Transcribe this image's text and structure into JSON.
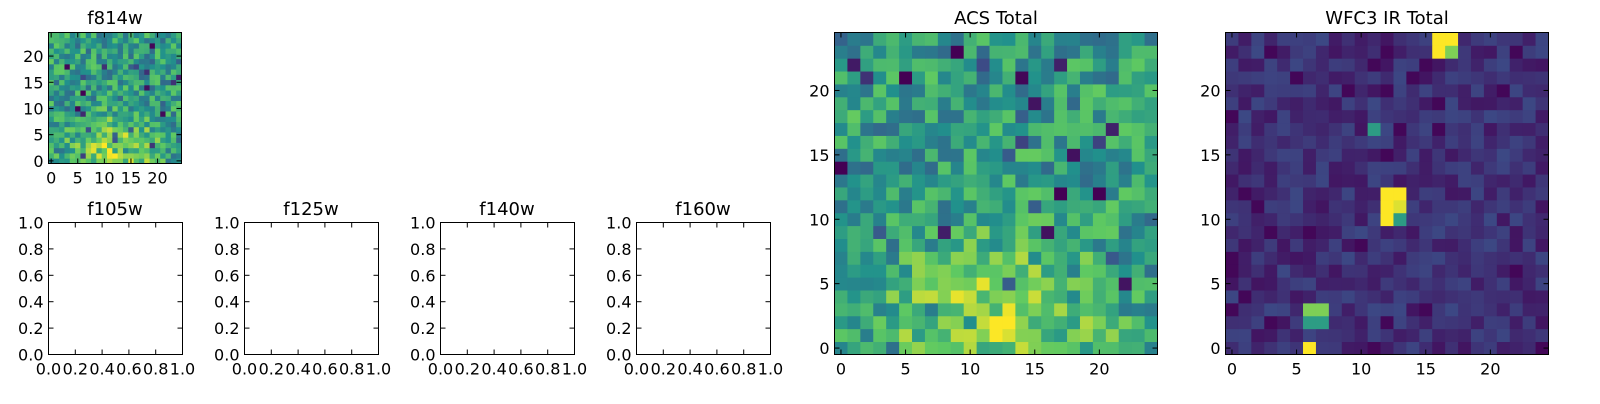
{
  "colors": {
    "viridis": [
      "#440154",
      "#3b528b",
      "#21918c",
      "#5ec962",
      "#fde725"
    ]
  },
  "panels": [
    {
      "title": "f814w",
      "kind": "image",
      "xticks": [
        "0",
        "5",
        "10",
        "15",
        "20"
      ],
      "yticks": [
        "0",
        "5",
        "10",
        "15",
        "20"
      ]
    },
    {
      "title": "f105w",
      "kind": "empty",
      "xticks": [
        "0.0",
        "0.2",
        "0.4",
        "0.6",
        "0.8",
        "1.0"
      ],
      "yticks": [
        "0.0",
        "0.2",
        "0.4",
        "0.6",
        "0.8",
        "1.0"
      ]
    },
    {
      "title": "f125w",
      "kind": "empty",
      "xticks": [
        "0.0",
        "0.2",
        "0.4",
        "0.6",
        "0.8",
        "1.0"
      ],
      "yticks": [
        "0.0",
        "0.2",
        "0.4",
        "0.6",
        "0.8",
        "1.0"
      ]
    },
    {
      "title": "f140w",
      "kind": "empty",
      "xticks": [
        "0.0",
        "0.2",
        "0.4",
        "0.6",
        "0.8",
        "1.0"
      ],
      "yticks": [
        "0.0",
        "0.2",
        "0.4",
        "0.6",
        "0.8",
        "1.0"
      ]
    },
    {
      "title": "f160w",
      "kind": "empty",
      "xticks": [
        "0.0",
        "0.2",
        "0.4",
        "0.6",
        "0.8",
        "1.0"
      ],
      "yticks": [
        "0.0",
        "0.2",
        "0.4",
        "0.6",
        "0.8",
        "1.0"
      ]
    },
    {
      "title": "ACS Total",
      "kind": "image",
      "xticks": [
        "0",
        "5",
        "10",
        "15",
        "20"
      ],
      "yticks": [
        "0",
        "5",
        "10",
        "15",
        "20"
      ]
    },
    {
      "title": "WFC3 IR Total",
      "kind": "image",
      "xticks": [
        "0",
        "5",
        "10",
        "15",
        "20"
      ],
      "yticks": [
        "0",
        "5",
        "10",
        "15",
        "20"
      ]
    }
  ],
  "chart_data": [
    {
      "type": "heatmap",
      "title": "f814w",
      "colormap": "viridis",
      "grid_size": [
        25,
        25
      ],
      "xlim": [
        -0.5,
        24.5
      ],
      "ylim": [
        -0.5,
        24.5
      ],
      "features": "noisy field, brighter (yellow) region near x 8-15, y 0-5"
    },
    {
      "type": "scatter",
      "title": "f105w",
      "xlim": [
        0,
        1
      ],
      "ylim": [
        0,
        1
      ],
      "values": []
    },
    {
      "type": "scatter",
      "title": "f125w",
      "xlim": [
        0,
        1
      ],
      "ylim": [
        0,
        1
      ],
      "values": []
    },
    {
      "type": "scatter",
      "title": "f140w",
      "xlim": [
        0,
        1
      ],
      "ylim": [
        0,
        1
      ],
      "values": []
    },
    {
      "type": "scatter",
      "title": "f160w",
      "xlim": [
        0,
        1
      ],
      "ylim": [
        0,
        1
      ],
      "values": []
    },
    {
      "type": "heatmap",
      "title": "ACS Total",
      "colormap": "viridis",
      "grid_size": [
        25,
        25
      ],
      "xlim": [
        -0.5,
        24.5
      ],
      "ylim": [
        -0.5,
        24.5
      ],
      "features": "mostly green field, brighter region near x 9-15, y 0-5; dark pixels near (20,12), (5,21), (0,14)"
    },
    {
      "type": "heatmap",
      "title": "WFC3 IR Total",
      "colormap": "viridis",
      "grid_size": [
        25,
        25
      ],
      "xlim": [
        -0.5,
        24.5
      ],
      "ylim": [
        -0.5,
        24.5
      ],
      "features": "dark blue field; bright sources at x 12-13, y 10-12; x 6-7, y 0-3; x 16-17, y 23-24",
      "bright_pixels": [
        {
          "x": 12,
          "y": 12,
          "v": 1.0
        },
        {
          "x": 13,
          "y": 12,
          "v": 1.0
        },
        {
          "x": 12,
          "y": 11,
          "v": 1.0
        },
        {
          "x": 13,
          "y": 11,
          "v": 0.95
        },
        {
          "x": 12,
          "y": 10,
          "v": 1.0
        },
        {
          "x": 13,
          "y": 10,
          "v": 0.55
        },
        {
          "x": 6,
          "y": 3,
          "v": 0.8
        },
        {
          "x": 7,
          "y": 3,
          "v": 0.8
        },
        {
          "x": 6,
          "y": 2,
          "v": 0.55
        },
        {
          "x": 7,
          "y": 2,
          "v": 0.55
        },
        {
          "x": 6,
          "y": 0,
          "v": 1.0
        },
        {
          "x": 16,
          "y": 24,
          "v": 1.0
        },
        {
          "x": 17,
          "y": 24,
          "v": 1.0
        },
        {
          "x": 16,
          "y": 23,
          "v": 1.0
        },
        {
          "x": 17,
          "y": 23,
          "v": 0.8
        },
        {
          "x": 11,
          "y": 17,
          "v": 0.55
        }
      ]
    }
  ]
}
